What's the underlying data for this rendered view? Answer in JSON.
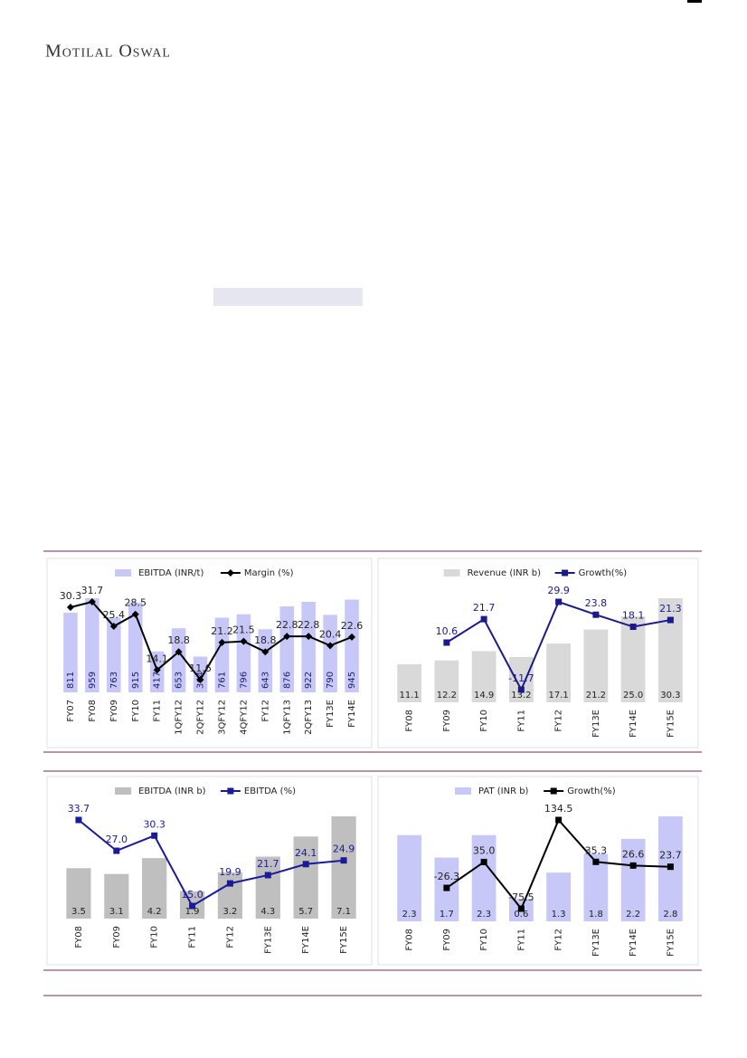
{
  "header": {
    "brand": "Motilal Oswal"
  },
  "chart_data": [
    {
      "type": "combo",
      "categories": [
        "FY07",
        "FY08",
        "FY09",
        "FY10",
        "FY11",
        "1QFY12",
        "2QFY12",
        "3QFY12",
        "4QFY12",
        "FY12",
        "1QFY13",
        "2QFY13",
        "FY13E",
        "FY14E"
      ],
      "series": [
        {
          "name": "EBITDA (INR/t)",
          "type": "bar",
          "color": "#c8c8f8",
          "values": [
            811,
            959,
            763,
            915,
            417,
            653,
            364,
            761,
            796,
            643,
            876,
            922,
            790,
            945
          ]
        },
        {
          "name": "Margin (%)",
          "type": "line",
          "marker": "diamond",
          "color": "#000000",
          "values": [
            30.3,
            31.7,
            25.4,
            28.5,
            14.1,
            18.8,
            11.6,
            21.2,
            21.5,
            18.8,
            22.8,
            22.8,
            20.4,
            22.6
          ]
        }
      ]
    },
    {
      "type": "combo",
      "categories": [
        "FY08",
        "FY09",
        "FY10",
        "FY11",
        "FY12",
        "FY13E",
        "FY14E",
        "FY15E"
      ],
      "series": [
        {
          "name": "Revenue (INR b)",
          "type": "bar",
          "color": "#d9d9d9",
          "values": [
            11.1,
            12.2,
            14.9,
            13.2,
            17.1,
            21.2,
            25.0,
            30.3
          ],
          "value_labels": [
            "11.1",
            "12.2",
            "14.9",
            "13.2",
            "17.1",
            "21.2",
            "25.0",
            "30.3"
          ]
        },
        {
          "name": "Growth(%)",
          "type": "line",
          "marker": "square",
          "color": "#1a1a8c",
          "values": [
            null,
            10.6,
            21.7,
            -11.7,
            29.9,
            23.8,
            18.1,
            21.3
          ]
        }
      ]
    },
    {
      "type": "combo",
      "categories": [
        "FY08",
        "FY09",
        "FY10",
        "FY11",
        "FY12",
        "FY13E",
        "FY14E",
        "FY15E"
      ],
      "series": [
        {
          "name": "EBITDA (INR b)",
          "type": "bar",
          "color": "#bfbfbf",
          "values": [
            3.5,
            3.1,
            4.2,
            1.9,
            3.2,
            4.3,
            5.7,
            7.1
          ]
        },
        {
          "name": "EBITDA (%)",
          "type": "line",
          "marker": "square",
          "color": "#1a1a9c",
          "values": [
            33.7,
            27.0,
            30.3,
            15.0,
            19.9,
            21.7,
            24.1,
            24.9
          ],
          "value_labels": [
            "33.7",
            "27.0",
            "30.3",
            "15.0",
            "19.9",
            "21.7",
            "24.1",
            "24.9"
          ]
        }
      ]
    },
    {
      "type": "combo",
      "categories": [
        "FY08",
        "FY09",
        "FY10",
        "FY11",
        "FY12",
        "FY13E",
        "FY14E",
        "FY15E"
      ],
      "series": [
        {
          "name": "PAT (INR b)",
          "type": "bar",
          "color": "#c8c8f8",
          "values": [
            2.3,
            1.7,
            2.3,
            0.6,
            1.3,
            1.8,
            2.2,
            2.8
          ]
        },
        {
          "name": "Growth(%)",
          "type": "line",
          "marker": "square",
          "color": "#000000",
          "values": [
            null,
            -26.3,
            35.0,
            -75.5,
            134.5,
            35.3,
            26.6,
            23.7
          ],
          "value_labels": [
            null,
            "-26.3",
            "35.0",
            "-75.5",
            "134.5",
            "35.3",
            "26.6",
            "23.7"
          ]
        }
      ]
    }
  ]
}
